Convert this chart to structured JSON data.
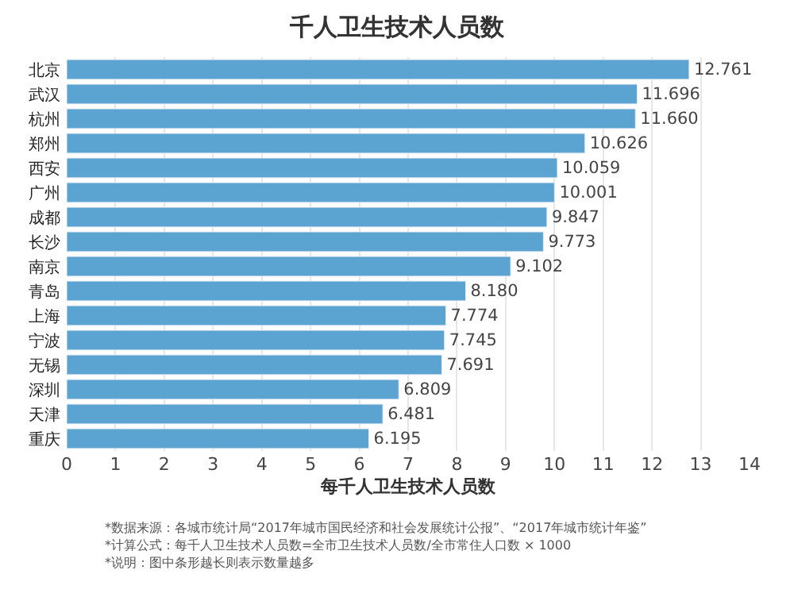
{
  "chart_data": {
    "type": "bar",
    "orientation": "horizontal",
    "title": "千人卫生技术人员数",
    "xlabel": "每千人卫生技术人员数",
    "categories": [
      "北京",
      "武汉",
      "杭州",
      "郑州",
      "西安",
      "广州",
      "成都",
      "长沙",
      "南京",
      "青岛",
      "上海",
      "宁波",
      "无锡",
      "深圳",
      "天津",
      "重庆"
    ],
    "values": [
      12.761,
      11.696,
      11.66,
      10.626,
      10.059,
      10.001,
      9.847,
      9.773,
      9.102,
      8.18,
      7.774,
      7.745,
      7.691,
      6.809,
      6.481,
      6.195
    ],
    "color": "#5ba3d0",
    "value_labels": [
      "12.761",
      "11.696",
      "11.660",
      "10.626",
      "10.059",
      "10.001",
      "9.847",
      "9.773",
      "9.102",
      "8.180",
      "7.774",
      "7.745",
      "7.691",
      "6.809",
      "6.481",
      "6.195"
    ],
    "xlim": [
      0,
      14
    ],
    "xticks": [
      0,
      1,
      2,
      3,
      4,
      5,
      6,
      7,
      8,
      9,
      10,
      11,
      12,
      13,
      14
    ],
    "grid": "x",
    "legend": false,
    "annotations": [
      "*数据来源：各城市统计局“2017年城市国民经济和社会发展统计公报”、“2017年城市统计年鉴”",
      "*计算公式：每千人卫生技术人员数=全市卫生技术人员数/全市常住人口数 × 1000",
      "*说明：图中条形越长则表示数量越多"
    ]
  }
}
